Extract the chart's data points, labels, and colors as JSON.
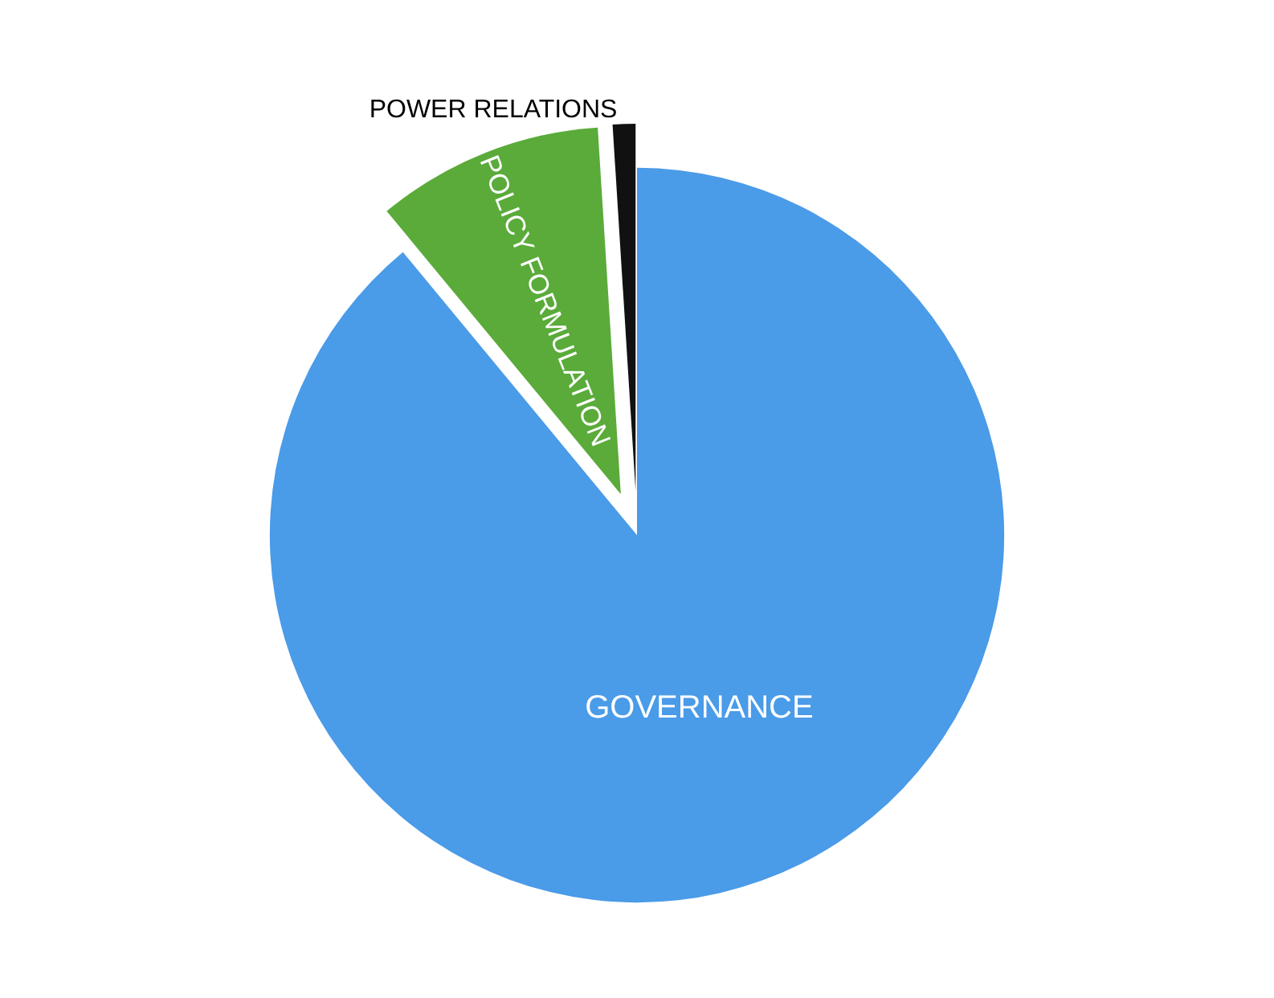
{
  "chart_data": {
    "type": "pie",
    "categories": [
      "GOVERNANCE",
      "POLICY FORMULATION",
      "POWER RELATIONS"
    ],
    "values": [
      89,
      10,
      1
    ],
    "colors": [
      "#4a9be8",
      "#5aab3a",
      "#111111"
    ]
  }
}
